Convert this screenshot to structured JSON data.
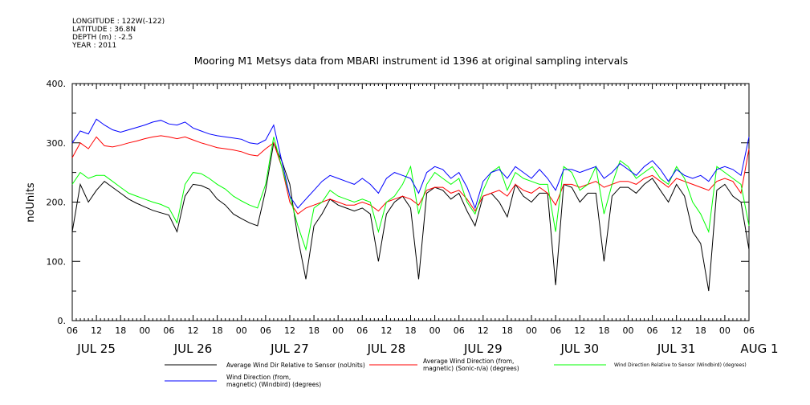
{
  "meta": {
    "longitude": "LONGITUDE : 122W(-122)",
    "latitude": "LATITUDE : 36.8N",
    "depth": "DEPTH (m) : -2.5",
    "year": "YEAR : 2011"
  },
  "chart_data": {
    "type": "line",
    "title": "Mooring M1 Metsys data from MBARI instrument id 1396 at original sampling intervals",
    "ylabel": "noUnits",
    "ylim": [
      0,
      400
    ],
    "yticks": [
      0,
      100,
      200,
      300,
      400
    ],
    "ytick_labels": [
      "0.",
      "100.",
      "200.",
      "300.",
      "400."
    ],
    "xlim_hours": [
      0,
      168
    ],
    "xtick_labels": [
      "06",
      "12",
      "18",
      "00",
      "06",
      "12",
      "18",
      "00",
      "06",
      "12",
      "18",
      "00",
      "06",
      "12",
      "18",
      "00",
      "06",
      "12",
      "18",
      "00",
      "06",
      "12",
      "18",
      "00",
      "06",
      "12",
      "18",
      "00",
      "06"
    ],
    "day_labels": [
      {
        "label": "JUL 25",
        "hour": 6
      },
      {
        "label": "JUL 26",
        "hour": 30
      },
      {
        "label": "JUL 27",
        "hour": 54
      },
      {
        "label": "JUL 28",
        "hour": 78
      },
      {
        "label": "JUL 29",
        "hour": 102
      },
      {
        "label": "JUL 30",
        "hour": 126
      },
      {
        "label": "JUL 31",
        "hour": 150
      },
      {
        "label": "AUG 1",
        "hour": 168
      }
    ],
    "series": [
      {
        "name": "Average Wind Dir Relative to Sensor (noUnits)",
        "color": "#000000",
        "hours": [
          0,
          2,
          4,
          6,
          8,
          10,
          12,
          14,
          16,
          18,
          20,
          22,
          24,
          26,
          28,
          30,
          32,
          34,
          36,
          38,
          40,
          42,
          44,
          46,
          48,
          50,
          52,
          54,
          56,
          58,
          60,
          62,
          64,
          66,
          68,
          70,
          72,
          74,
          76,
          78,
          80,
          82,
          84,
          86,
          88,
          90,
          92,
          94,
          96,
          98,
          100,
          102,
          104,
          106,
          108,
          110,
          112,
          114,
          116,
          118,
          120,
          122,
          124,
          126,
          128,
          130,
          132,
          134,
          136,
          138,
          140,
          142,
          144,
          146,
          148,
          150,
          152,
          154,
          156,
          158,
          160,
          162,
          164,
          166,
          168
        ],
        "values": [
          150,
          230,
          200,
          220,
          235,
          225,
          215,
          205,
          198,
          192,
          186,
          182,
          178,
          150,
          210,
          230,
          228,
          222,
          205,
          195,
          180,
          172,
          165,
          160,
          220,
          300,
          270,
          230,
          140,
          70,
          160,
          180,
          205,
          195,
          190,
          185,
          190,
          180,
          100,
          180,
          200,
          210,
          190,
          70,
          215,
          225,
          220,
          205,
          215,
          185,
          160,
          210,
          215,
          200,
          175,
          230,
          210,
          200,
          215,
          215,
          60,
          230,
          225,
          200,
          215,
          215,
          100,
          210,
          225,
          225,
          215,
          230,
          240,
          220,
          200,
          230,
          210,
          150,
          130,
          50,
          220,
          230,
          210,
          200,
          120
        ]
      },
      {
        "name": "Average Wind Direction (from, magnetic) (Sonic-n/a) (degrees)",
        "color": "#ff0000",
        "hours": [
          0,
          2,
          4,
          6,
          8,
          10,
          12,
          14,
          16,
          18,
          20,
          22,
          24,
          26,
          28,
          30,
          32,
          34,
          36,
          38,
          40,
          42,
          44,
          46,
          48,
          50,
          52,
          54,
          56,
          58,
          60,
          62,
          64,
          66,
          68,
          70,
          72,
          74,
          76,
          78,
          80,
          82,
          84,
          86,
          88,
          90,
          92,
          94,
          96,
          98,
          100,
          102,
          104,
          106,
          108,
          110,
          112,
          114,
          116,
          118,
          120,
          122,
          124,
          126,
          128,
          130,
          132,
          134,
          136,
          138,
          140,
          142,
          144,
          146,
          148,
          150,
          152,
          154,
          156,
          158,
          160,
          162,
          164,
          166,
          168
        ],
        "values": [
          275,
          300,
          290,
          310,
          295,
          293,
          296,
          300,
          303,
          307,
          310,
          312,
          310,
          307,
          310,
          305,
          300,
          296,
          292,
          290,
          288,
          285,
          280,
          278,
          290,
          300,
          260,
          200,
          180,
          190,
          195,
          200,
          205,
          200,
          195,
          195,
          200,
          195,
          185,
          200,
          205,
          210,
          205,
          195,
          220,
          225,
          225,
          215,
          220,
          205,
          185,
          210,
          215,
          220,
          210,
          230,
          220,
          215,
          225,
          215,
          195,
          230,
          230,
          225,
          230,
          235,
          225,
          230,
          235,
          235,
          230,
          240,
          245,
          235,
          225,
          240,
          235,
          230,
          225,
          220,
          235,
          240,
          235,
          215,
          290
        ]
      },
      {
        "name": "Wind Direction Relative to Sensor (Windbird) (degrees)",
        "color": "#00ff00",
        "hours": [
          0,
          2,
          4,
          6,
          8,
          10,
          12,
          14,
          16,
          18,
          20,
          22,
          24,
          26,
          28,
          30,
          32,
          34,
          36,
          38,
          40,
          42,
          44,
          46,
          48,
          50,
          52,
          54,
          56,
          58,
          60,
          62,
          64,
          66,
          68,
          70,
          72,
          74,
          76,
          78,
          80,
          82,
          84,
          86,
          88,
          90,
          92,
          94,
          96,
          98,
          100,
          102,
          104,
          106,
          108,
          110,
          112,
          114,
          116,
          118,
          120,
          122,
          124,
          126,
          128,
          130,
          132,
          134,
          136,
          138,
          140,
          142,
          144,
          146,
          148,
          150,
          152,
          154,
          156,
          158,
          160,
          162,
          164,
          166,
          168
        ],
        "values": [
          230,
          250,
          240,
          245,
          245,
          235,
          225,
          215,
          210,
          205,
          200,
          196,
          190,
          165,
          230,
          250,
          248,
          240,
          230,
          222,
          210,
          202,
          195,
          190,
          230,
          310,
          260,
          210,
          160,
          120,
          190,
          200,
          220,
          210,
          205,
          200,
          205,
          200,
          150,
          200,
          210,
          230,
          260,
          180,
          230,
          250,
          240,
          230,
          240,
          200,
          180,
          220,
          250,
          260,
          220,
          250,
          240,
          235,
          230,
          230,
          150,
          260,
          250,
          220,
          230,
          260,
          180,
          230,
          270,
          260,
          240,
          250,
          260,
          240,
          230,
          260,
          240,
          200,
          180,
          150,
          260,
          250,
          240,
          230,
          160
        ]
      },
      {
        "name": "Wind Direction (from, magnetic) (Windbird) (degrees)",
        "color": "#0000ff",
        "hours": [
          0,
          2,
          4,
          6,
          8,
          10,
          12,
          14,
          16,
          18,
          20,
          22,
          24,
          26,
          28,
          30,
          32,
          34,
          36,
          38,
          40,
          42,
          44,
          46,
          48,
          50,
          52,
          54,
          56,
          58,
          60,
          62,
          64,
          66,
          68,
          70,
          72,
          74,
          76,
          78,
          80,
          82,
          84,
          86,
          88,
          90,
          92,
          94,
          96,
          98,
          100,
          102,
          104,
          106,
          108,
          110,
          112,
          114,
          116,
          118,
          120,
          122,
          124,
          126,
          128,
          130,
          132,
          134,
          136,
          138,
          140,
          142,
          144,
          146,
          148,
          150,
          152,
          154,
          156,
          158,
          160,
          162,
          164,
          166,
          168
        ],
        "values": [
          300,
          320,
          315,
          340,
          330,
          322,
          318,
          322,
          326,
          330,
          335,
          338,
          332,
          330,
          335,
          325,
          320,
          315,
          312,
          310,
          308,
          306,
          300,
          298,
          305,
          330,
          270,
          210,
          190,
          205,
          220,
          235,
          245,
          240,
          235,
          230,
          240,
          230,
          215,
          240,
          250,
          245,
          240,
          215,
          250,
          260,
          255,
          240,
          250,
          225,
          190,
          235,
          250,
          255,
          240,
          260,
          250,
          240,
          255,
          240,
          220,
          255,
          255,
          250,
          255,
          260,
          240,
          250,
          265,
          255,
          245,
          260,
          270,
          255,
          235,
          255,
          245,
          240,
          245,
          235,
          255,
          260,
          255,
          245,
          310
        ]
      }
    ]
  }
}
